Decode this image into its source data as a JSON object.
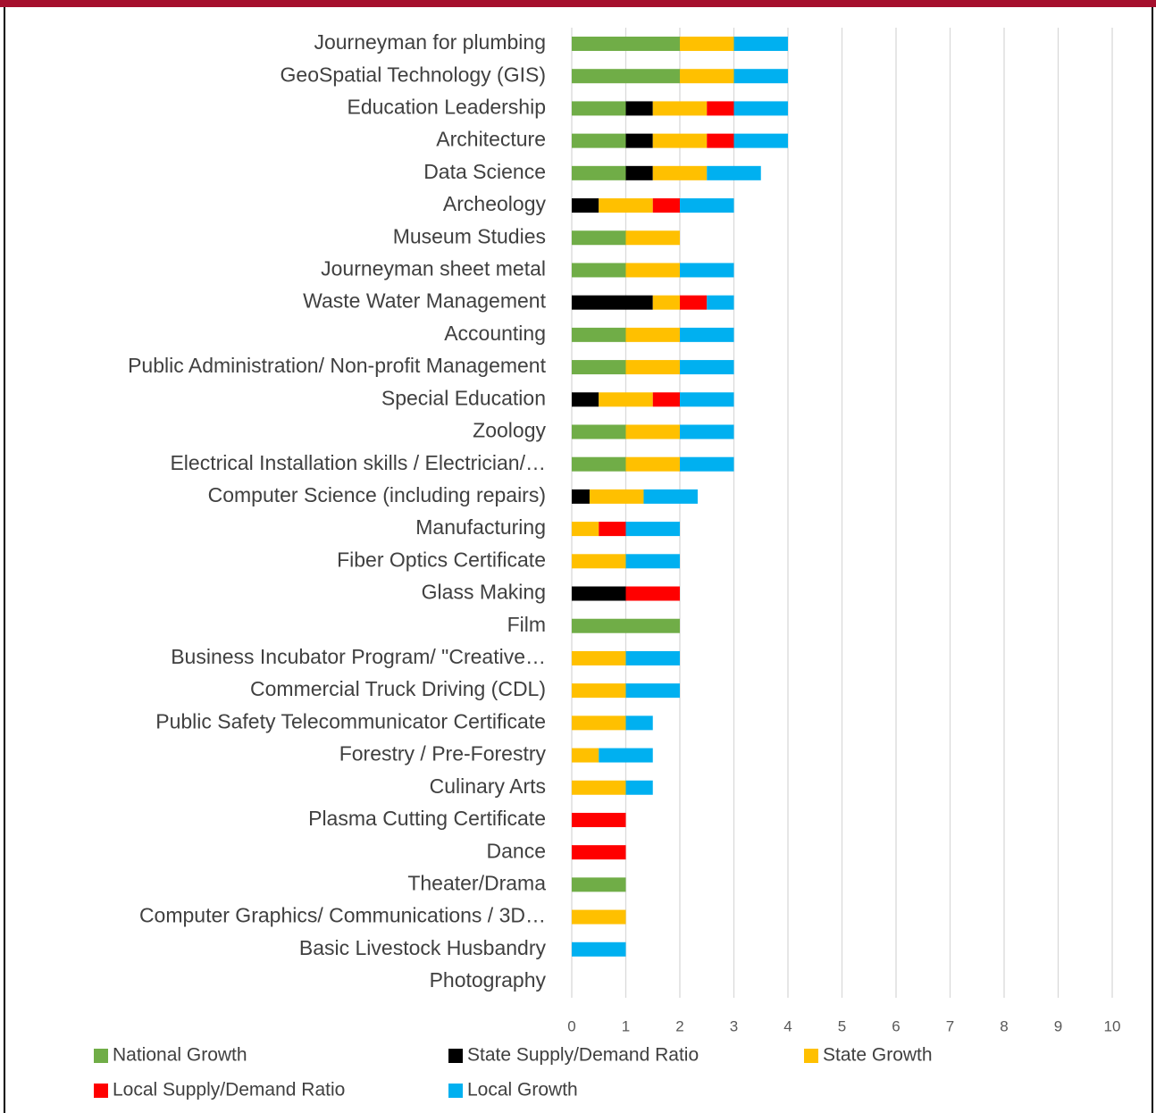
{
  "chart_data": {
    "type": "stacked-barh",
    "categories": [
      "Journeyman for plumbing",
      "GeoSpatial Technology (GIS)",
      "Education Leadership",
      "Architecture",
      "Data Science",
      "Archeology",
      "Museum Studies",
      "Journeyman sheet metal",
      "Waste Water Management",
      "Accounting",
      "Public Administration/ Non-profit Management",
      "Special Education",
      "Zoology",
      "Electrical Installation skills / Electrician/…",
      "Computer Science (including repairs)",
      "Manufacturing",
      "Fiber Optics Certificate",
      "Glass Making",
      "Film",
      "Business Incubator Program/ \"Creative…",
      "Commercial Truck Driving (CDL)",
      "Public Safety Telecommunicator Certificate",
      "Forestry / Pre-Forestry",
      "Culinary Arts",
      "Plasma Cutting Certificate",
      "Dance",
      "Theater/Drama",
      "Computer Graphics/ Communications / 3D…",
      "Basic Livestock Husbandry",
      "Photography"
    ],
    "series": [
      {
        "name": "National Growth",
        "color": "#70ad47",
        "values": [
          2,
          2,
          1,
          1,
          1,
          0,
          1,
          1,
          0,
          1,
          1,
          0,
          1,
          1,
          0,
          0,
          0,
          0,
          2,
          0,
          0,
          0,
          0,
          0,
          0,
          0,
          1,
          0,
          0,
          0
        ]
      },
      {
        "name": "State Supply/Demand Ratio",
        "color": "#000000",
        "values": [
          0,
          0,
          0.5,
          0.5,
          0.5,
          0.5,
          0,
          0,
          1.5,
          0,
          0,
          0.5,
          0,
          0,
          0.33,
          0,
          0,
          1,
          0,
          0,
          0,
          0,
          0,
          0,
          0,
          0,
          0,
          0,
          0,
          0
        ]
      },
      {
        "name": "State Growth",
        "color": "#ffc000",
        "values": [
          1,
          1,
          1,
          1,
          1,
          1,
          1,
          1,
          0.5,
          1,
          1,
          1,
          1,
          1,
          1,
          0.5,
          1,
          0,
          0,
          1,
          1,
          1,
          0.5,
          1,
          0,
          0,
          0,
          1,
          0,
          0
        ]
      },
      {
        "name": "Local Supply/Demand Ratio",
        "color": "#ff0000",
        "values": [
          0,
          0,
          0.5,
          0.5,
          0,
          0.5,
          0,
          0,
          0.5,
          0,
          0,
          0.5,
          0,
          0,
          0,
          0.5,
          0,
          1,
          0,
          0,
          0,
          0,
          0,
          0,
          1,
          1,
          0,
          0,
          0,
          0
        ]
      },
      {
        "name": "Local Growth",
        "color": "#00b0f0",
        "values": [
          1,
          1,
          1,
          1,
          1,
          1,
          0,
          1,
          0.5,
          1,
          1,
          1,
          1,
          1,
          1,
          1,
          1,
          0,
          0,
          1,
          1,
          0.5,
          1,
          0.5,
          0,
          0,
          0,
          0,
          1,
          0
        ]
      }
    ],
    "xlim": [
      0,
      10
    ],
    "xticks": [
      0,
      1,
      2,
      3,
      4,
      5,
      6,
      7,
      8,
      9,
      10
    ],
    "grid": true,
    "legend": "bottom"
  }
}
